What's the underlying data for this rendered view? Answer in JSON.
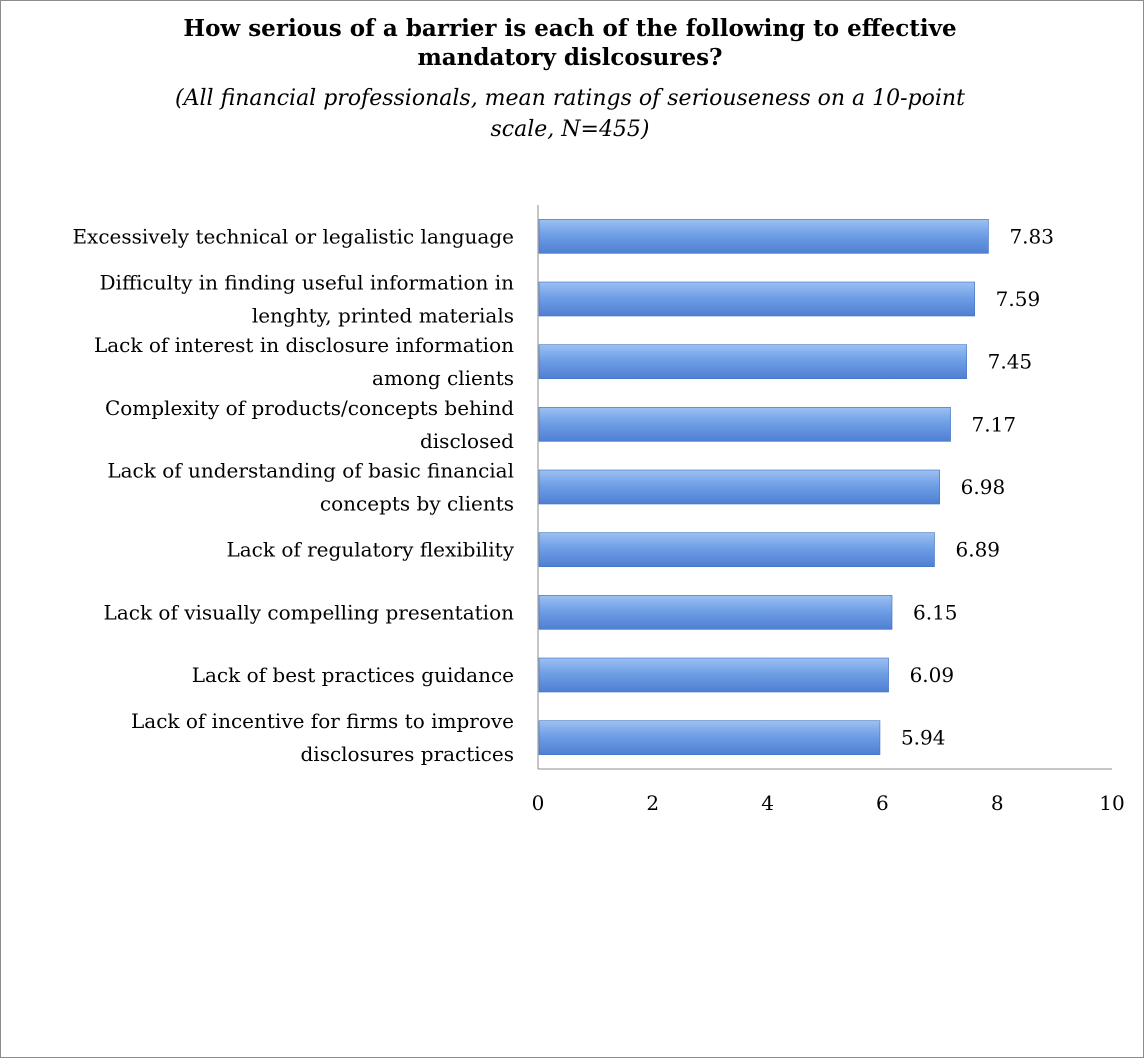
{
  "chart_data": {
    "type": "bar",
    "orientation": "horizontal",
    "title": "How serious of a barrier is each of the following to effective mandatory dislcosures?",
    "subtitle": "(All financial professionals, mean ratings of seriouseness on a 10-point scale, N=455)",
    "xlabel": "",
    "ylabel": "",
    "xlim": [
      0,
      10
    ],
    "ticks": [
      0,
      2,
      4,
      6,
      8,
      10
    ],
    "grid": false,
    "legend": "none",
    "bar_color": "#6f9fe6",
    "bar_edge_color": "#3f6fc0",
    "categories": [
      [
        "Excessively technical or legalistic language"
      ],
      [
        "Difficulty in finding useful information in",
        "lenghty, printed materials"
      ],
      [
        "Lack of interest in disclosure information",
        "among clients"
      ],
      [
        "Complexity of products/concepts behind",
        "disclosed"
      ],
      [
        "Lack of understanding of basic financial",
        "concepts by clients"
      ],
      [
        "Lack of regulatory flexibility"
      ],
      [
        "Lack of visually compelling presentation"
      ],
      [
        "Lack of best practices guidance"
      ],
      [
        "Lack of incentive for firms to improve",
        "disclosures practices"
      ]
    ],
    "values": [
      7.83,
      7.59,
      7.45,
      7.17,
      6.98,
      6.89,
      6.15,
      6.09,
      5.94
    ],
    "value_labels": [
      "7.83",
      "7.59",
      "7.45",
      "7.17",
      "6.98",
      "6.89",
      "6.15",
      "6.09",
      "5.94"
    ]
  }
}
